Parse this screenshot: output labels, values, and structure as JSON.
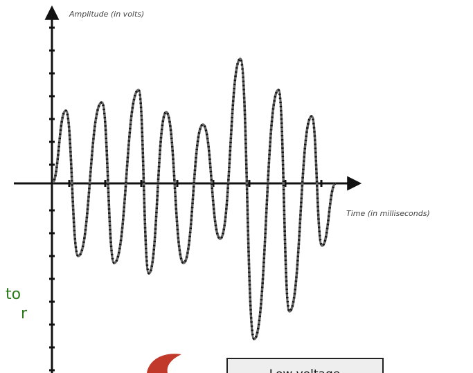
{
  "axes": {
    "y_label": "Amplitude (in volts)",
    "x_label": "Time (in milliseconds)"
  },
  "side_text": [
    "to",
    "r"
  ],
  "box": {
    "label": "Low voltage"
  }
}
